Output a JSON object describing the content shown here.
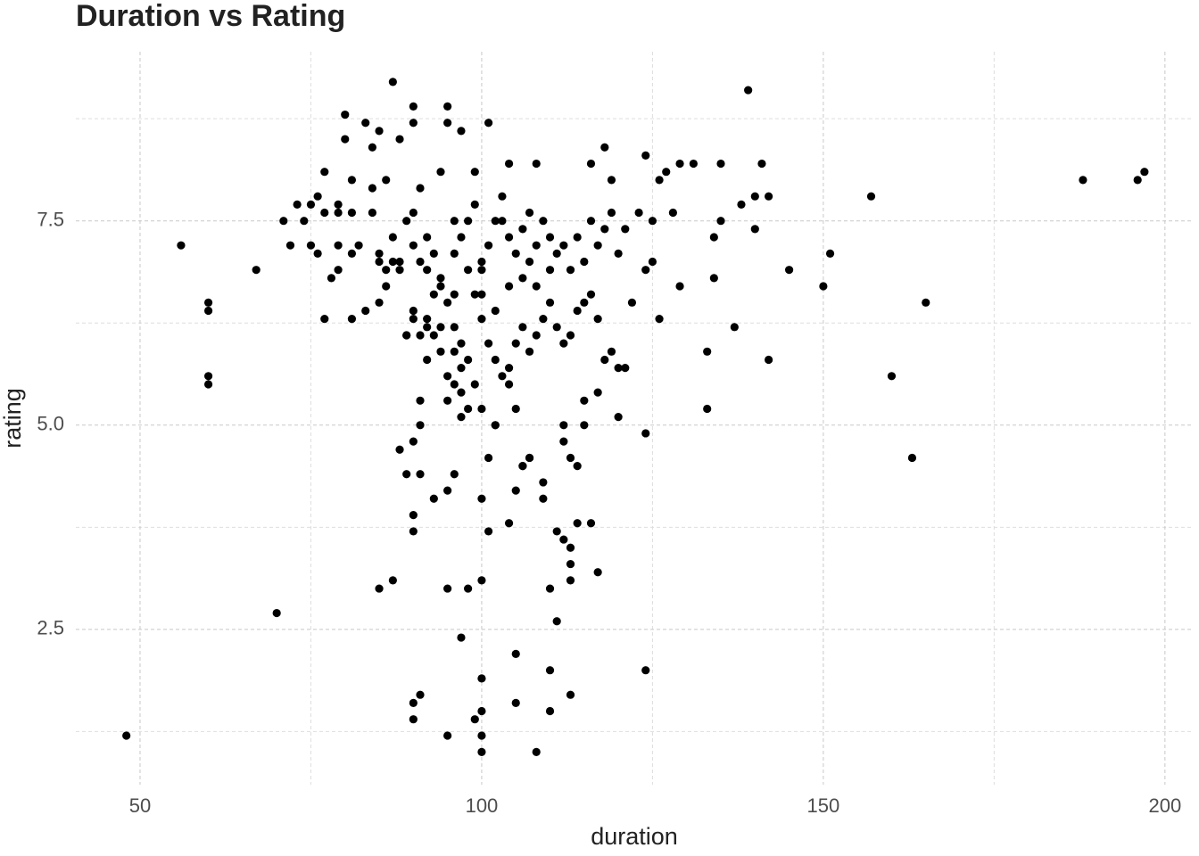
{
  "chart_data": {
    "type": "scatter",
    "title": "Duration vs Rating",
    "x_label": "duration",
    "y_label": "rating",
    "color": "#000000",
    "grid": true,
    "xlim": [
      40.6,
      204.2
    ],
    "ylim": [
      0.6,
      9.57
    ],
    "xticks": [
      50,
      100,
      150,
      200
    ],
    "yticks": [
      2.5,
      {
        "value": 5,
        "label": "5.0"
      },
      7.5
    ],
    "x_minor_grid": [
      75,
      125,
      175
    ],
    "y_minor_grid": [
      1.25,
      3.75,
      6.25,
      8.75
    ],
    "x": [
      48,
      56,
      60,
      60,
      60,
      60,
      67,
      70,
      71,
      72,
      73,
      74,
      75,
      75,
      76,
      76,
      77,
      77,
      77,
      78,
      79,
      79,
      79,
      79,
      80,
      80,
      81,
      81,
      81,
      81,
      82,
      83,
      83,
      84,
      84,
      84,
      85,
      85,
      85,
      85,
      86,
      86,
      87,
      87,
      87,
      88,
      88,
      89,
      89,
      90,
      90,
      90,
      90,
      90,
      90,
      90,
      90,
      90,
      91,
      91,
      91,
      91,
      91,
      92,
      92,
      93,
      93,
      94,
      94,
      95,
      95,
      95,
      95,
      95,
      95,
      96,
      96,
      96,
      97,
      97,
      97,
      98,
      99,
      99,
      100,
      100,
      100,
      100,
      100,
      100,
      100,
      100,
      101,
      101,
      101,
      102,
      103,
      104,
      104,
      105,
      105,
      105,
      105,
      106,
      107,
      107,
      108,
      108,
      109,
      110,
      110,
      110,
      111,
      111,
      112,
      113,
      113,
      113,
      113,
      114,
      115,
      116,
      116,
      117,
      118,
      119,
      120,
      124,
      124,
      124,
      125,
      126,
      127,
      129,
      129,
      131,
      133,
      133,
      134,
      134,
      135,
      135,
      137,
      138,
      139,
      140,
      140,
      141,
      142,
      142,
      145,
      150,
      151,
      157,
      160,
      163,
      165,
      188,
      196,
      197,
      88,
      87,
      86,
      85,
      88,
      89,
      90,
      91,
      92,
      93,
      94,
      93,
      95,
      96,
      97,
      98,
      99,
      96,
      97,
      100,
      101,
      102,
      103,
      104,
      105,
      106,
      107,
      108,
      109,
      110,
      111,
      112,
      113,
      114,
      115,
      116,
      117,
      118,
      119,
      120,
      100,
      101,
      102,
      103,
      104,
      105,
      106,
      107,
      108,
      109,
      110,
      111,
      112,
      113,
      114,
      115,
      116,
      117,
      118,
      119,
      120,
      121,
      122,
      123,
      124,
      125,
      126,
      128,
      96,
      97,
      98,
      99,
      98,
      99,
      100,
      102,
      104,
      106,
      108,
      110,
      95,
      96,
      97,
      98,
      102,
      104,
      106,
      107,
      109,
      113,
      114,
      115,
      117,
      121,
      112,
      112,
      94,
      92,
      91,
      92,
      94,
      90,
      89
    ],
    "values": [
      1.2,
      7.2,
      6.5,
      6.4,
      5.6,
      5.5,
      6.9,
      2.7,
      7.5,
      7.2,
      7.7,
      7.5,
      7.2,
      7.7,
      7.8,
      7.1,
      8.1,
      7.6,
      6.3,
      6.8,
      7.7,
      7.6,
      7.2,
      6.9,
      8.8,
      8.5,
      7.6,
      7.1,
      6.3,
      8.0,
      7.2,
      8.7,
      6.4,
      8.4,
      7.9,
      7.6,
      8.6,
      7.0,
      6.5,
      3.0,
      8.0,
      6.7,
      9.2,
      7.3,
      3.1,
      8.5,
      4.7,
      4.4,
      6.1,
      8.9,
      8.7,
      7.6,
      6.4,
      4.8,
      3.9,
      3.7,
      1.6,
      1.4,
      7.9,
      5.3,
      5.0,
      4.4,
      1.7,
      7.3,
      6.3,
      6.1,
      4.1,
      8.1,
      6.7,
      8.9,
      8.7,
      5.6,
      4.2,
      3.0,
      1.2,
      7.5,
      6.6,
      4.4,
      8.6,
      5.4,
      2.4,
      3.0,
      8.1,
      1.4,
      6.9,
      5.2,
      4.1,
      3.1,
      1.9,
      1.5,
      1.2,
      1.0,
      8.7,
      3.7,
      4.6,
      5.0,
      7.5,
      8.2,
      3.8,
      5.2,
      4.2,
      2.2,
      1.6,
      4.5,
      7.6,
      4.6,
      8.2,
      1.0,
      4.1,
      3.0,
      2.0,
      1.5,
      2.6,
      3.7,
      3.6,
      3.5,
      3.3,
      3.1,
      1.7,
      3.8,
      5.0,
      8.2,
      3.8,
      3.2,
      8.4,
      8.0,
      5.1,
      8.3,
      4.9,
      2.0,
      7.5,
      6.3,
      8.1,
      8.2,
      6.7,
      8.2,
      5.9,
      5.2,
      7.3,
      6.8,
      8.2,
      7.5,
      6.2,
      7.7,
      9.1,
      7.8,
      7.4,
      8.2,
      7.8,
      5.8,
      6.9,
      6.7,
      7.1,
      7.8,
      5.6,
      4.6,
      6.5,
      8.0,
      8.0,
      8.1,
      7.0,
      7.0,
      6.9,
      7.1,
      6.9,
      7.5,
      7.2,
      7.0,
      6.9,
      7.1,
      6.8,
      6.6,
      6.5,
      6.2,
      6.0,
      5.8,
      5.5,
      5.9,
      5.7,
      6.3,
      6.0,
      5.8,
      5.6,
      5.5,
      6.0,
      6.2,
      5.9,
      6.1,
      6.3,
      6.5,
      6.2,
      6.0,
      6.1,
      6.4,
      6.5,
      6.6,
      6.3,
      5.8,
      5.9,
      5.7,
      7.0,
      7.2,
      7.5,
      7.8,
      7.3,
      7.1,
      7.4,
      7.0,
      7.2,
      7.5,
      7.3,
      7.1,
      7.2,
      6.9,
      7.3,
      7.0,
      7.5,
      7.2,
      7.4,
      7.6,
      7.1,
      7.4,
      6.5,
      7.6,
      6.9,
      7.0,
      8.0,
      7.6,
      7.1,
      7.3,
      7.5,
      7.7,
      6.9,
      6.6,
      6.6,
      6.4,
      6.7,
      6.8,
      6.7,
      6.9,
      5.3,
      5.5,
      5.1,
      5.2,
      5.0,
      5.7,
      4.5,
      4.6,
      4.3,
      4.6,
      4.5,
      5.3,
      5.4,
      5.7,
      4.8,
      5.0,
      6.2,
      6.2,
      6.1,
      5.8,
      5.9,
      6.3,
      6.1
    ]
  }
}
